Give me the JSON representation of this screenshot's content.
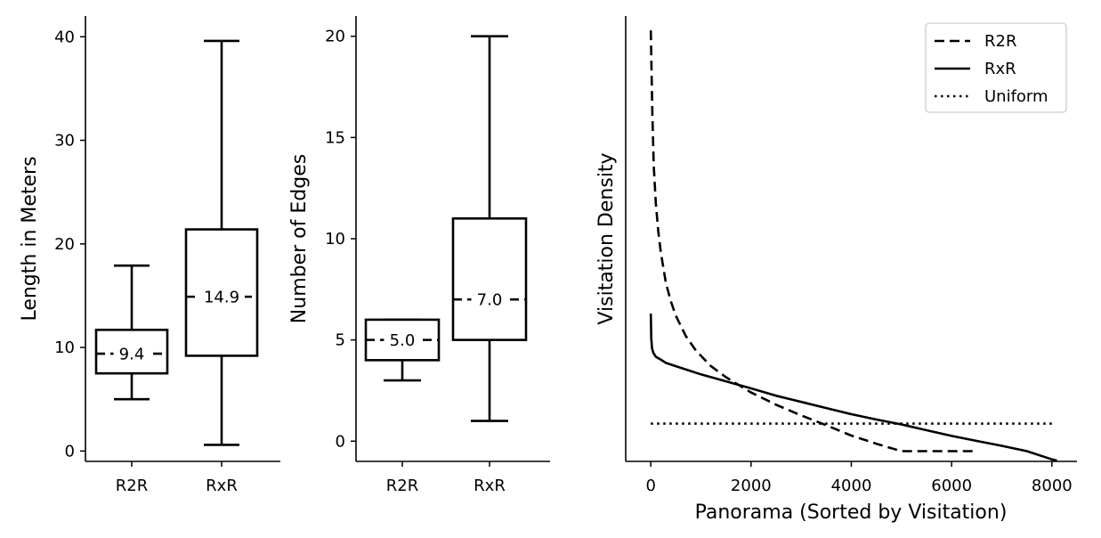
{
  "chart_data": [
    {
      "type": "box",
      "ylabel": "Length in Meters",
      "ylim": [
        -1,
        42
      ],
      "yticks": [
        0,
        10,
        20,
        30,
        40
      ],
      "categories": [
        "R2R",
        "RxR"
      ],
      "boxes": [
        {
          "name": "R2R",
          "whislo": 5.0,
          "q1": 7.5,
          "median": 9.4,
          "q3": 11.7,
          "whishi": 17.9,
          "label": "9.4"
        },
        {
          "name": "RxR",
          "whislo": 0.6,
          "q1": 9.2,
          "median": 14.9,
          "q3": 21.4,
          "whishi": 39.6,
          "label": "14.9"
        }
      ]
    },
    {
      "type": "box",
      "ylabel": "Number of Edges",
      "ylim": [
        -1,
        21
      ],
      "yticks": [
        0,
        5,
        10,
        15,
        20
      ],
      "categories": [
        "R2R",
        "RxR"
      ],
      "boxes": [
        {
          "name": "R2R",
          "whislo": 3.0,
          "q1": 4.0,
          "median": 5.0,
          "q3": 6.0,
          "whishi": 6.0,
          "label": "5.0"
        },
        {
          "name": "RxR",
          "whislo": 1.0,
          "q1": 5.0,
          "median": 7.0,
          "q3": 11.0,
          "whishi": 20.0,
          "label": "7.0"
        }
      ]
    },
    {
      "type": "line",
      "xlabel": "Panorama (Sorted by Visitation)",
      "ylabel": "Visitation Density",
      "xlim": [
        -500,
        8500
      ],
      "xticks": [
        0,
        2000,
        4000,
        6000,
        8000
      ],
      "ylim": [
        0,
        10.85
      ],
      "y_ticks_shown": false,
      "legend": "top-right",
      "series": [
        {
          "name": "R2R",
          "style": "dashed",
          "x": [
            0,
            30,
            60,
            100,
            150,
            200,
            300,
            400,
            500,
            700,
            900,
            1200,
            1500,
            2000,
            2500,
            3000,
            3500,
            4000,
            4500,
            5000,
            5500,
            6000,
            6500
          ],
          "y": [
            10.5,
            8.5,
            7.2,
            6.3,
            5.6,
            5.1,
            4.35,
            3.9,
            3.55,
            3.05,
            2.7,
            2.32,
            2.05,
            1.68,
            1.38,
            1.12,
            0.88,
            0.63,
            0.43,
            0.25,
            0.25,
            0.25,
            0.25
          ]
        },
        {
          "name": "RxR",
          "style": "solid",
          "x": [
            0,
            10,
            25,
            50,
            100,
            200,
            300,
            500,
            800,
            1000,
            1500,
            2000,
            2500,
            3000,
            3500,
            4000,
            4500,
            5000,
            5500,
            6000,
            6500,
            7000,
            7500,
            8000,
            8100
          ],
          "y": [
            3.6,
            3.0,
            2.75,
            2.65,
            2.55,
            2.48,
            2.4,
            2.32,
            2.2,
            2.12,
            1.95,
            1.78,
            1.6,
            1.45,
            1.3,
            1.15,
            1.02,
            0.9,
            0.76,
            0.62,
            0.5,
            0.38,
            0.25,
            0.05,
            0.02
          ]
        },
        {
          "name": "Uniform",
          "style": "dotted",
          "x": [
            0,
            8000
          ],
          "y": [
            0.92,
            0.92
          ]
        }
      ]
    }
  ]
}
